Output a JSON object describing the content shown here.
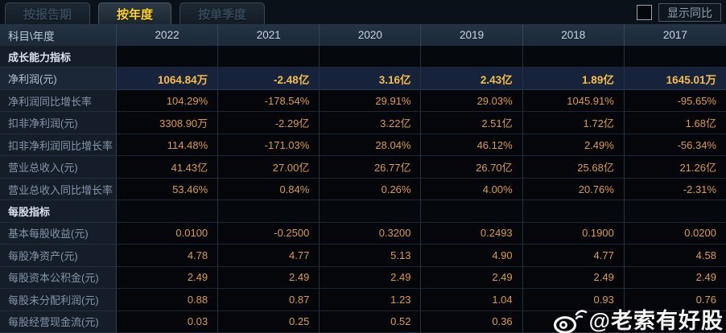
{
  "tabs": [
    {
      "label": "按报告期",
      "active": false
    },
    {
      "label": "按年度",
      "active": true
    },
    {
      "label": "按单季度",
      "active": false
    }
  ],
  "controls": {
    "checkbox_checked": false,
    "show_yoy_label": "显示同比",
    "more_years_icon": "»"
  },
  "table": {
    "corner_header": "科目\\年度",
    "years": [
      "2022",
      "2021",
      "2020",
      "2019",
      "2018",
      "2017"
    ],
    "rows": [
      {
        "type": "section",
        "label": "成长能力指标",
        "values": [
          "",
          "",
          "",
          "",
          "",
          ""
        ]
      },
      {
        "type": "data",
        "highlight": true,
        "label": "净利润(元)",
        "values": [
          "1064.84万",
          "-2.48亿",
          "3.16亿",
          "2.43亿",
          "1.89亿",
          "1645.01万"
        ]
      },
      {
        "type": "data",
        "highlight": false,
        "label": "净利润同比增长率",
        "values": [
          "104.29%",
          "-178.54%",
          "29.91%",
          "29.03%",
          "1045.91%",
          "-95.65%"
        ]
      },
      {
        "type": "data",
        "highlight": false,
        "label": "扣非净利润(元)",
        "values": [
          "3308.90万",
          "-2.29亿",
          "3.22亿",
          "2.51亿",
          "1.72亿",
          "1.68亿"
        ]
      },
      {
        "type": "data",
        "highlight": false,
        "label": "扣非净利润同比增长率",
        "values": [
          "114.48%",
          "-171.03%",
          "28.04%",
          "46.12%",
          "2.49%",
          "-56.34%"
        ]
      },
      {
        "type": "data",
        "highlight": false,
        "label": "营业总收入(元)",
        "values": [
          "41.43亿",
          "27.00亿",
          "26.77亿",
          "26.70亿",
          "25.68亿",
          "21.26亿"
        ]
      },
      {
        "type": "data",
        "highlight": false,
        "label": "营业总收入同比增长率",
        "values": [
          "53.46%",
          "0.84%",
          "0.26%",
          "4.00%",
          "20.76%",
          "-2.31%"
        ]
      },
      {
        "type": "section",
        "label": "每股指标",
        "values": [
          "",
          "",
          "",
          "",
          "",
          ""
        ]
      },
      {
        "type": "data",
        "highlight": false,
        "label": "基本每股收益(元)",
        "values": [
          "0.0100",
          "-0.2500",
          "0.3200",
          "0.2493",
          "0.1900",
          "0.0200"
        ]
      },
      {
        "type": "data",
        "highlight": false,
        "label": "每股净资产(元)",
        "values": [
          "4.78",
          "4.77",
          "5.13",
          "4.90",
          "4.77",
          "4.58"
        ]
      },
      {
        "type": "data",
        "highlight": false,
        "label": "每股资本公积金(元)",
        "values": [
          "2.49",
          "2.49",
          "2.49",
          "2.49",
          "2.49",
          "2.49"
        ]
      },
      {
        "type": "data",
        "highlight": false,
        "label": "每股未分配利润(元)",
        "values": [
          "0.88",
          "0.87",
          "1.23",
          "1.04",
          "0.93",
          "0.76"
        ]
      },
      {
        "type": "data",
        "highlight": false,
        "label": "每股经营现金流(元)",
        "values": [
          "0.03",
          "0.25",
          "0.52",
          "0.36",
          "",
          ""
        ]
      }
    ]
  },
  "watermark": {
    "text": "@老索有好股",
    "icon": "weibo-icon"
  },
  "colors": {
    "value_text": "#dd9c3e",
    "highlight_value_text": "#f6bc4a",
    "active_tab_text": "#ffd21c",
    "header_bg": "#1e2c3c",
    "page_bg": "#0a0f15"
  }
}
